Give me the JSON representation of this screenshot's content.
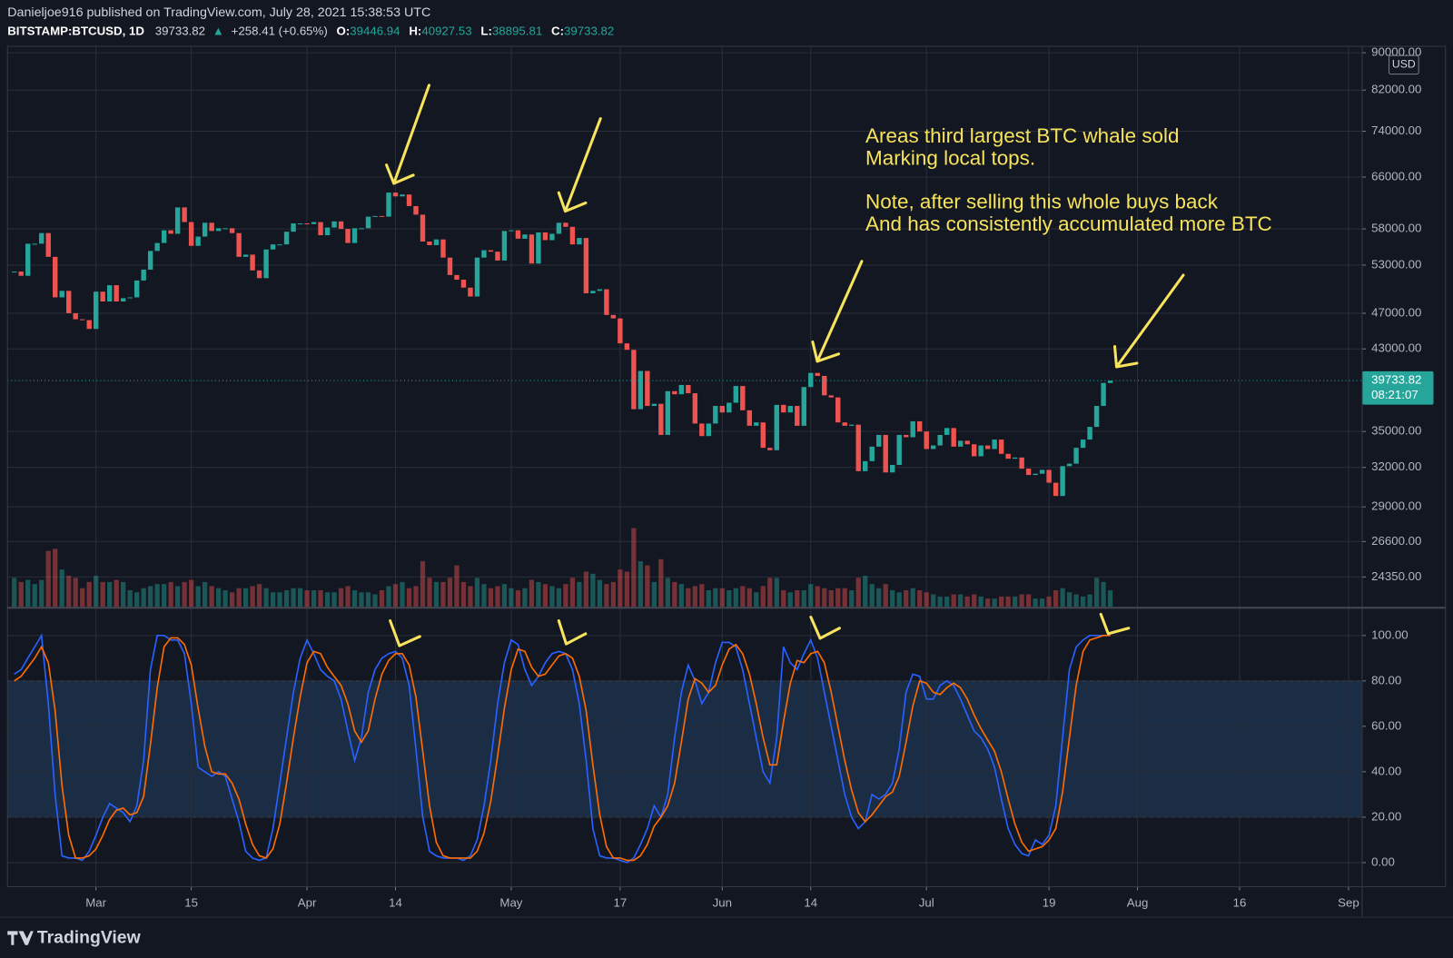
{
  "header": {
    "publisher": "Danieljoe916 published on TradingView.com, July 28, 2021 15:38:53 UTC",
    "symbol": "BITSTAMP:BTCUSD, 1D",
    "last": 39733.82,
    "change": "+258.41 (+0.65%)",
    "ohlc": [
      {
        "label": "O:",
        "value": 39446.94
      },
      {
        "label": "H:",
        "value": 40927.53
      },
      {
        "label": "L:",
        "value": 38895.81
      },
      {
        "label": "C:",
        "value": 39733.82
      }
    ]
  },
  "annotation": [
    "Areas third largest BTC whale sold",
    "Marking local tops.",
    "Note, after selling this whole buys back",
    "And has consistently accumulated more BTC"
  ],
  "branding": "TradingView",
  "chart_data": [
    {
      "type": "candlestick",
      "currency": "USD",
      "countdown": "08:21:07",
      "log_scale": true,
      "grid": true,
      "up_color": "#26a69a",
      "down_color": "#ef5350",
      "xlim": [
        "2021-02-16",
        "2021-09-03"
      ],
      "xticks": [
        {
          "value": "2021-03-01",
          "label": "Mar"
        },
        {
          "value": "2021-03-15",
          "label": "15"
        },
        {
          "value": "2021-04-01",
          "label": "Apr"
        },
        {
          "value": "2021-04-14",
          "label": "14"
        },
        {
          "value": "2021-05-01",
          "label": "May"
        },
        {
          "value": "2021-05-17",
          "label": "17"
        },
        {
          "value": "2021-06-01",
          "label": "Jun"
        },
        {
          "value": "2021-06-14",
          "label": "14"
        },
        {
          "value": "2021-07-01",
          "label": "Jul"
        },
        {
          "value": "2021-07-19",
          "label": "19"
        },
        {
          "value": "2021-08-01",
          "label": "Aug"
        },
        {
          "value": "2021-08-16",
          "label": "16"
        },
        {
          "value": "2021-09-01",
          "label": "Sep"
        }
      ],
      "ylim": [
        22600,
        91450
      ],
      "yticks": [
        {
          "value": 24350,
          "label": "24350.00"
        },
        {
          "value": 26600,
          "label": "26600.00"
        },
        {
          "value": 29000,
          "label": "29000.00"
        },
        {
          "value": 32000,
          "label": "32000.00"
        },
        {
          "value": 35000,
          "label": "35000.00"
        },
        {
          "value": 43000,
          "label": "43000.00"
        },
        {
          "value": 47000,
          "label": "47000.00"
        },
        {
          "value": 53000,
          "label": "53000.00"
        },
        {
          "value": 58000,
          "label": "58000.00"
        },
        {
          "value": 66000,
          "label": "66000.00"
        },
        {
          "value": 74000,
          "label": "74000.00"
        },
        {
          "value": 82000,
          "label": "82000.00"
        },
        {
          "value": 90000,
          "label": "90000.00"
        }
      ],
      "x": [
        "2021-02-17",
        "2021-02-18",
        "2021-02-19",
        "2021-02-20",
        "2021-02-21",
        "2021-02-22",
        "2021-02-23",
        "2021-02-24",
        "2021-02-25",
        "2021-02-26",
        "2021-02-27",
        "2021-02-28",
        "2021-03-01",
        "2021-03-02",
        "2021-03-03",
        "2021-03-04",
        "2021-03-05",
        "2021-03-06",
        "2021-03-07",
        "2021-03-08",
        "2021-03-09",
        "2021-03-10",
        "2021-03-11",
        "2021-03-12",
        "2021-03-13",
        "2021-03-14",
        "2021-03-15",
        "2021-03-16",
        "2021-03-17",
        "2021-03-18",
        "2021-03-19",
        "2021-03-20",
        "2021-03-21",
        "2021-03-22",
        "2021-03-23",
        "2021-03-24",
        "2021-03-25",
        "2021-03-26",
        "2021-03-27",
        "2021-03-28",
        "2021-03-29",
        "2021-03-30",
        "2021-03-31",
        "2021-04-01",
        "2021-04-02",
        "2021-04-03",
        "2021-04-04",
        "2021-04-05",
        "2021-04-06",
        "2021-04-07",
        "2021-04-08",
        "2021-04-09",
        "2021-04-10",
        "2021-04-11",
        "2021-04-12",
        "2021-04-13",
        "2021-04-14",
        "2021-04-15",
        "2021-04-16",
        "2021-04-17",
        "2021-04-18",
        "2021-04-19",
        "2021-04-20",
        "2021-04-21",
        "2021-04-22",
        "2021-04-23",
        "2021-04-24",
        "2021-04-25",
        "2021-04-26",
        "2021-04-27",
        "2021-04-28",
        "2021-04-29",
        "2021-04-30",
        "2021-05-01",
        "2021-05-02",
        "2021-05-03",
        "2021-05-04",
        "2021-05-05",
        "2021-05-06",
        "2021-05-07",
        "2021-05-08",
        "2021-05-09",
        "2021-05-10",
        "2021-05-11",
        "2021-05-12",
        "2021-05-13",
        "2021-05-14",
        "2021-05-15",
        "2021-05-16",
        "2021-05-17",
        "2021-05-18",
        "2021-05-19",
        "2021-05-20",
        "2021-05-21",
        "2021-05-22",
        "2021-05-23",
        "2021-05-24",
        "2021-05-25",
        "2021-05-26",
        "2021-05-27",
        "2021-05-28",
        "2021-05-29",
        "2021-05-30",
        "2021-05-31",
        "2021-06-01",
        "2021-06-02",
        "2021-06-03",
        "2021-06-04",
        "2021-06-05",
        "2021-06-06",
        "2021-06-07",
        "2021-06-08",
        "2021-06-09",
        "2021-06-10",
        "2021-06-11",
        "2021-06-12",
        "2021-06-13",
        "2021-06-14",
        "2021-06-15",
        "2021-06-16",
        "2021-06-17",
        "2021-06-18",
        "2021-06-19",
        "2021-06-20",
        "2021-06-21",
        "2021-06-22",
        "2021-06-23",
        "2021-06-24",
        "2021-06-25",
        "2021-06-26",
        "2021-06-27",
        "2021-06-28",
        "2021-06-29",
        "2021-06-30",
        "2021-07-01",
        "2021-07-02",
        "2021-07-03",
        "2021-07-04",
        "2021-07-05",
        "2021-07-06",
        "2021-07-07",
        "2021-07-08",
        "2021-07-09",
        "2021-07-10",
        "2021-07-11",
        "2021-07-12",
        "2021-07-13",
        "2021-07-14",
        "2021-07-15",
        "2021-07-16",
        "2021-07-17",
        "2021-07-18",
        "2021-07-19",
        "2021-07-20",
        "2021-07-21",
        "2021-07-22",
        "2021-07-23",
        "2021-07-24",
        "2021-07-25",
        "2021-07-26",
        "2021-07-27",
        "2021-07-28"
      ],
      "close": [
        52150,
        51600,
        55900,
        55900,
        57400,
        54100,
        48900,
        49700,
        47000,
        46300,
        46200,
        45200,
        49600,
        48400,
        50400,
        48400,
        48800,
        48900,
        51000,
        52400,
        54900,
        56000,
        57800,
        57300,
        61200,
        59000,
        55600,
        56900,
        58900,
        57700,
        58100,
        58100,
        57400,
        54100,
        54400,
        52300,
        51300,
        55100,
        55800,
        55800,
        57600,
        58800,
        58800,
        58700,
        59000,
        57100,
        58200,
        59100,
        58000,
        56000,
        58100,
        58100,
        59800,
        59900,
        59800,
        63500,
        62900,
        63200,
        61400,
        60100,
        56200,
        55700,
        56500,
        54000,
        51700,
        51100,
        50100,
        49000,
        54000,
        55000,
        54800,
        53600,
        57700,
        57800,
        56600,
        57200,
        53200,
        57500,
        56400,
        57300,
        58900,
        58300,
        55800,
        56700,
        49400,
        49700,
        49900,
        46800,
        46400,
        43600,
        42900,
        37000,
        40700,
        37300,
        37500,
        34700,
        38700,
        38400,
        39300,
        38500,
        35700,
        34600,
        35700,
        37300,
        36700,
        37600,
        39200,
        36900,
        35500,
        35800,
        33600,
        33400,
        37400,
        36700,
        37300,
        35500,
        39100,
        40500,
        40200,
        38300,
        38100,
        35800,
        35500,
        35600,
        31700,
        32500,
        33700,
        34700,
        31600,
        32200,
        34700,
        34500,
        35900,
        35000,
        33500,
        33800,
        34700,
        35300,
        33700,
        34200,
        33900,
        32900,
        33800,
        33500,
        34300,
        33100,
        32700,
        32800,
        31900,
        31400,
        31500,
        31800,
        30800,
        29800,
        32100,
        32300,
        33600,
        34300,
        35400,
        37300,
        39500,
        39733.82
      ],
      "volume": [
        14,
        12,
        13,
        11,
        13,
        27,
        28,
        18,
        15,
        14,
        9,
        12,
        15,
        12,
        12,
        13,
        12,
        8,
        7,
        9,
        10,
        11,
        11,
        12,
        10,
        12,
        13,
        10,
        12,
        10,
        9,
        8,
        7,
        9,
        9,
        10,
        11,
        9,
        7,
        7,
        8,
        9,
        9,
        8,
        8,
        8,
        7,
        7,
        9,
        10,
        8,
        7,
        7,
        6,
        8,
        10,
        11,
        12,
        9,
        10,
        22,
        14,
        12,
        12,
        14,
        20,
        12,
        10,
        14,
        11,
        9,
        10,
        11,
        9,
        8,
        9,
        13,
        12,
        11,
        10,
        9,
        11,
        14,
        12,
        17,
        16,
        13,
        11,
        12,
        18,
        17,
        38,
        22,
        20,
        12,
        23,
        14,
        12,
        11,
        9,
        10,
        11,
        8,
        9,
        9,
        8,
        9,
        10,
        9,
        7,
        10,
        14,
        14,
        8,
        7,
        8,
        8,
        11,
        10,
        9,
        8,
        9,
        9,
        8,
        14,
        15,
        11,
        9,
        11,
        8,
        7,
        8,
        9,
        8,
        7,
        6,
        5,
        5,
        6,
        6,
        5,
        6,
        5,
        4,
        4,
        5,
        5,
        5,
        6,
        6,
        4,
        4,
        5,
        8,
        9,
        7,
        6,
        5,
        6,
        14,
        12,
        8
      ]
    },
    {
      "type": "line",
      "ylim": [
        -10.6,
        111.8
      ],
      "bands": [
        20,
        80
      ],
      "band_color": "#1b2c45",
      "yticks": [
        {
          "value": 0,
          "label": "0.00"
        },
        {
          "value": 20,
          "label": "20.00"
        },
        {
          "value": 40,
          "label": "40.00"
        },
        {
          "value": 60,
          "label": "60.00"
        },
        {
          "value": 80,
          "label": "80.00"
        },
        {
          "value": 100,
          "label": "100.00"
        }
      ],
      "series": [
        {
          "color": "#2962ff",
          "values": [
            83,
            85,
            90,
            95,
            100,
            70,
            30,
            3,
            2,
            2,
            1,
            5,
            12,
            20,
            26,
            24,
            22,
            18,
            25,
            45,
            85,
            100,
            100,
            98,
            98,
            92,
            70,
            42,
            40,
            38,
            40,
            38,
            28,
            18,
            5,
            2,
            1,
            2,
            15,
            35,
            55,
            75,
            90,
            98,
            92,
            85,
            82,
            80,
            72,
            58,
            45,
            55,
            75,
            85,
            90,
            92,
            93,
            90,
            78,
            50,
            20,
            5,
            3,
            2,
            2,
            2,
            1,
            3,
            10,
            25,
            45,
            70,
            88,
            98,
            96,
            85,
            78,
            82,
            88,
            92,
            93,
            92,
            85,
            70,
            45,
            15,
            3,
            2,
            2,
            1,
            0,
            2,
            8,
            15,
            25,
            20,
            30,
            55,
            75,
            87,
            80,
            70,
            75,
            88,
            97,
            97,
            95,
            85,
            70,
            55,
            40,
            35,
            55,
            95,
            88,
            85,
            92,
            98,
            90,
            75,
            60,
            45,
            30,
            20,
            15,
            18,
            30,
            28,
            30,
            35,
            50,
            75,
            83,
            82,
            72,
            72,
            78,
            80,
            78,
            72,
            65,
            58,
            55,
            50,
            42,
            28,
            15,
            8,
            4,
            3,
            10,
            8,
            12,
            25,
            55,
            85,
            95,
            98,
            100,
            100,
            100,
            100
          ]
        },
        {
          "color": "#ff6d00",
          "values": [
            80,
            82,
            86,
            90,
            95,
            88,
            67,
            34,
            12,
            2,
            2,
            3,
            6,
            12,
            19,
            23,
            24,
            21,
            22,
            29,
            52,
            77,
            95,
            99,
            99,
            96,
            87,
            68,
            51,
            40,
            39,
            39,
            35,
            28,
            17,
            8,
            3,
            2,
            6,
            17,
            35,
            55,
            73,
            88,
            93,
            92,
            86,
            82,
            78,
            70,
            58,
            53,
            58,
            72,
            83,
            89,
            92,
            92,
            87,
            73,
            49,
            25,
            9,
            3,
            2,
            2,
            2,
            2,
            5,
            13,
            27,
            47,
            68,
            85,
            94,
            93,
            86,
            82,
            83,
            87,
            91,
            92,
            90,
            82,
            67,
            43,
            21,
            7,
            2,
            2,
            1,
            1,
            3,
            8,
            16,
            20,
            25,
            35,
            53,
            72,
            81,
            79,
            75,
            78,
            87,
            94,
            96,
            92,
            83,
            70,
            55,
            43,
            43,
            62,
            79,
            89,
            88,
            92,
            93,
            88,
            75,
            60,
            45,
            32,
            22,
            18,
            21,
            25,
            29,
            31,
            38,
            53,
            69,
            80,
            79,
            75,
            74,
            77,
            79,
            77,
            72,
            65,
            59,
            54,
            49,
            40,
            28,
            17,
            9,
            5,
            6,
            7,
            10,
            15,
            31,
            55,
            78,
            93,
            98,
            99,
            100,
            100
          ]
        }
      ]
    }
  ]
}
